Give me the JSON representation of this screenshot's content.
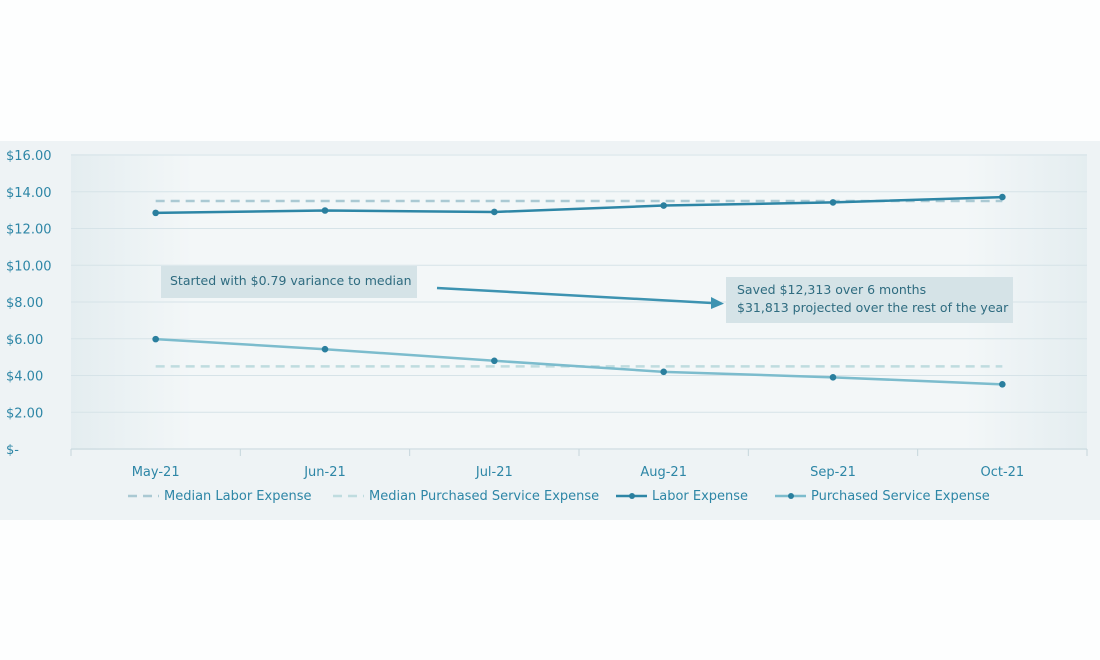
{
  "chart_data": {
    "type": "line",
    "categories": [
      "May-21",
      "Jun-21",
      "Jul-21",
      "Aug-21",
      "Sep-21",
      "Oct-21"
    ],
    "y_ticks": [
      "$16.00",
      "$14.00",
      "$12.00",
      "$10.00",
      "$8.00",
      "$6.00",
      "$4.00",
      "$2.00",
      "$-"
    ],
    "ylim": [
      0,
      16
    ],
    "grid": true,
    "legend_position": "bottom",
    "series": [
      {
        "name": "Median Labor Expense",
        "style": "dashed",
        "color": "#aac9d3",
        "values": [
          13.5,
          13.5,
          13.5,
          13.5,
          13.5,
          13.5
        ]
      },
      {
        "name": "Median Purchased Service Expense",
        "style": "dashed",
        "color": "#bfdcdf",
        "values": [
          4.5,
          4.5,
          4.5,
          4.5,
          4.5,
          4.5
        ]
      },
      {
        "name": "Labor Expense",
        "style": "solid-markers",
        "color": "#2d86a6",
        "values": [
          12.85,
          12.98,
          12.9,
          13.25,
          13.42,
          13.71
        ]
      },
      {
        "name": "Purchased Service Expense",
        "style": "solid-markers",
        "color": "#7cbccd",
        "values": [
          5.98,
          5.43,
          4.8,
          4.2,
          3.9,
          3.52
        ]
      }
    ],
    "annotations": [
      {
        "lines": [
          "Started with $0.79 variance to median"
        ]
      },
      {
        "lines": [
          "Saved $12,313 over 6 months",
          "$31,813 projected over the rest of the year"
        ]
      }
    ]
  }
}
